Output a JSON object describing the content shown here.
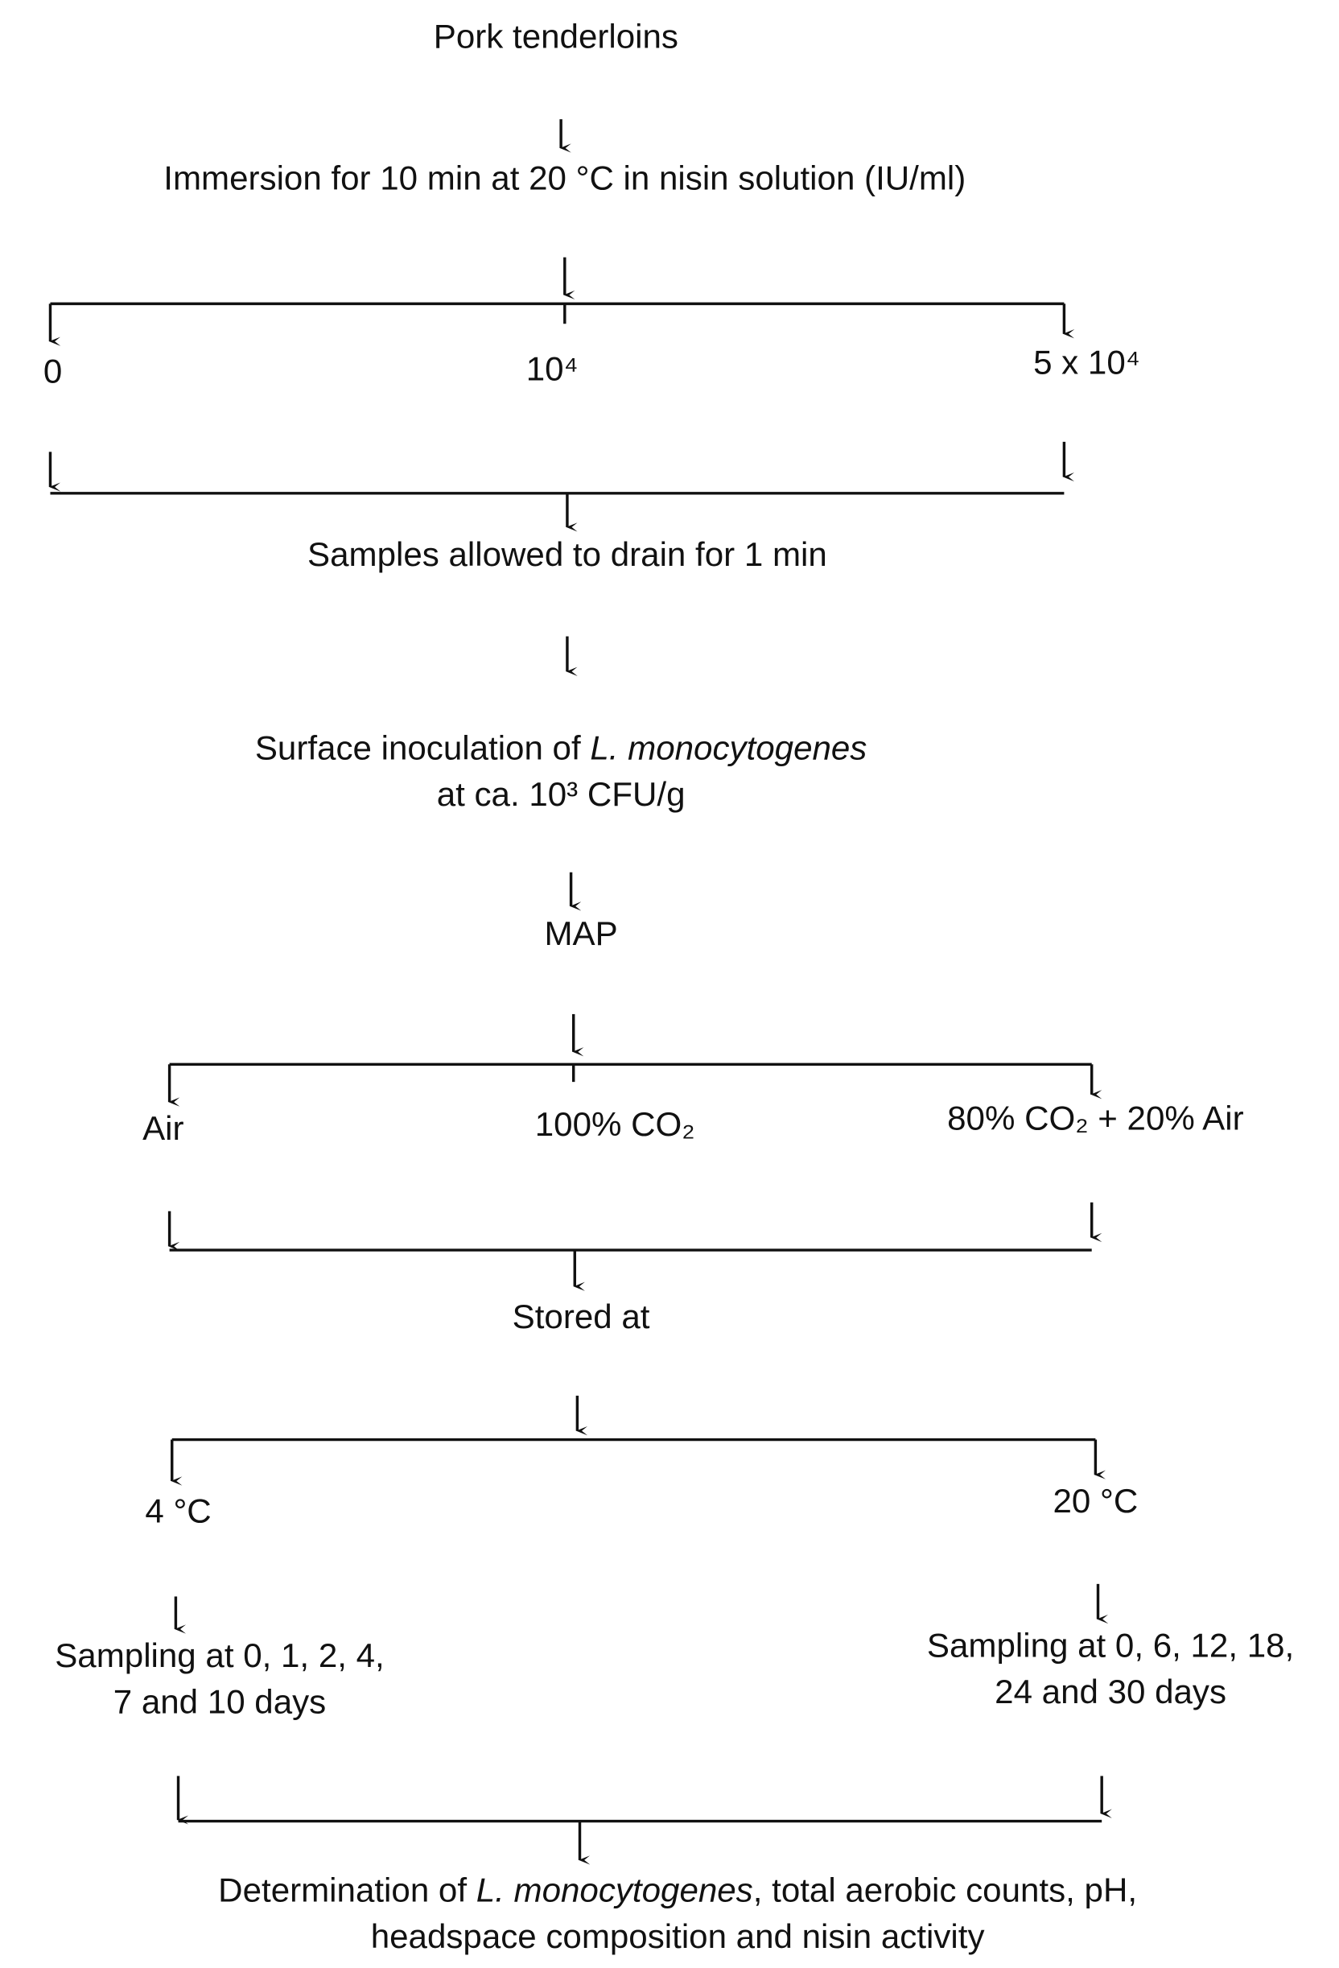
{
  "nodes": [
    {
      "lines": [
        [
          "Pork tenderloins"
        ]
      ]
    },
    {
      "lines": [
        [
          "Immersion for 10 min at 20 °C in nisin solution (IU/ml)"
        ]
      ]
    },
    {
      "lines": [
        [
          "0"
        ]
      ]
    },
    {
      "lines": [
        [
          "10⁴"
        ]
      ]
    },
    {
      "lines": [
        [
          "5 x 10⁴"
        ]
      ]
    },
    {
      "lines": [
        [
          "Samples allowed to drain for 1 min"
        ]
      ]
    },
    {
      "lines": [
        [
          "Surface inoculation of ",
          {
            "text": "L. monocytogenes",
            "italic": true
          }
        ],
        [
          "at ca. 10³ CFU/g"
        ]
      ]
    },
    {
      "lines": [
        [
          "MAP"
        ]
      ]
    },
    {
      "lines": [
        [
          "Air"
        ]
      ]
    },
    {
      "lines": [
        [
          "100% CO₂"
        ]
      ]
    },
    {
      "lines": [
        [
          "80% CO₂ + 20% Air"
        ]
      ]
    },
    {
      "lines": [
        [
          "Stored at"
        ]
      ]
    },
    {
      "lines": [
        [
          "4 °C"
        ]
      ]
    },
    {
      "lines": [
        [
          "20 °C"
        ]
      ]
    },
    {
      "lines": [
        [
          "Sampling at 0, 1, 2, 4,"
        ],
        [
          "7 and 10 days"
        ]
      ]
    },
    {
      "lines": [
        [
          "Sampling at 0, 6, 12, 18,"
        ],
        [
          "24 and 30 days"
        ]
      ]
    },
    {
      "lines": [
        [
          "Determination of ",
          {
            "text": "L. monocytogenes",
            "italic": true
          },
          ", total aerobic counts, pH,"
        ],
        [
          "headspace composition and nisin activity"
        ]
      ]
    }
  ]
}
